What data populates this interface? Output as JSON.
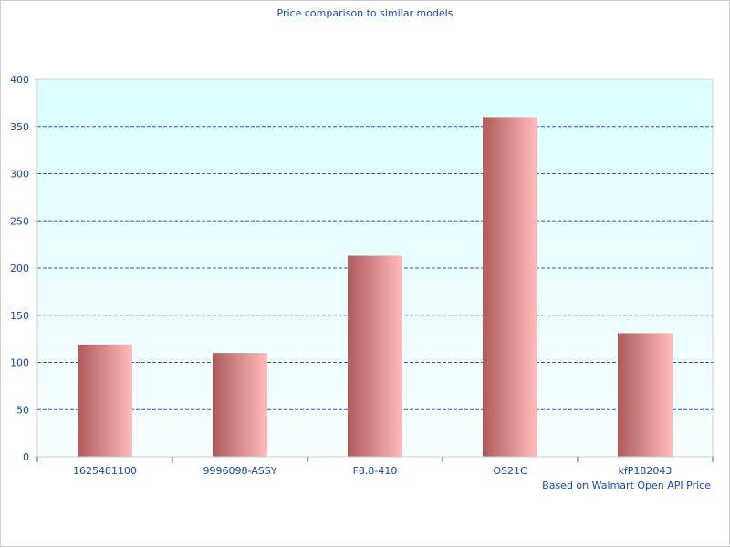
{
  "chart_data": {
    "type": "bar",
    "title": "Price comparison to similar models",
    "categories": [
      "1625481100",
      "9996098-ASSY",
      "F8.8-410",
      "OS21C",
      "kfP182043"
    ],
    "values": [
      119,
      110,
      213,
      360,
      131
    ],
    "xlabel": "",
    "ylabel": "",
    "ylim": [
      0,
      400
    ],
    "yticks": [
      0,
      50,
      100,
      150,
      200,
      250,
      300,
      350,
      400
    ],
    "grid": true,
    "annotation": "Based on Walmart Open API Price",
    "colors": {
      "bar_dark": "#b05a5a",
      "bar_light": "#ffbcbc",
      "grid": "#3355cc",
      "text": "#1a44b8",
      "plot_top": "#dcffff",
      "plot_bottom": "#f8ffff"
    }
  }
}
